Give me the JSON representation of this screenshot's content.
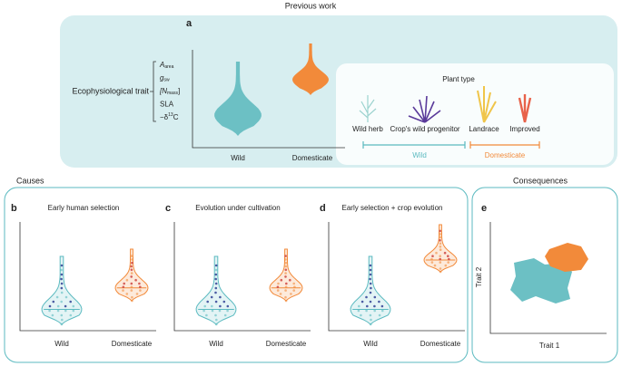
{
  "top": {
    "heading": "Previous work",
    "letter": "a",
    "axis_label": "Ecophysiological trait",
    "traits": [
      {
        "main": "A",
        "sub": "area"
      },
      {
        "main": "g",
        "sub": "sw"
      },
      {
        "main": "[N",
        "sub": "mass",
        "tail": "]"
      },
      {
        "main": "SLA"
      },
      {
        "main": "−δ",
        "sup": "13",
        "tail": "C"
      }
    ],
    "categories": [
      "Wild",
      "Domesticate"
    ],
    "plant_type": {
      "title": "Plant type",
      "plants": [
        "Wild herb",
        "Crop's wild progenitor",
        "Landrace",
        "Improved"
      ],
      "groups": [
        "Wild",
        "Domesticate"
      ]
    }
  },
  "causes": {
    "heading": "Causes",
    "panels": [
      {
        "letter": "b",
        "title": "Early human selection",
        "categories": [
          "Wild",
          "Domesticate"
        ]
      },
      {
        "letter": "c",
        "title": "Evolution under cultivation",
        "categories": [
          "Wild",
          "Domesticate"
        ]
      },
      {
        "letter": "d",
        "title": "Early selection + crop evolution",
        "categories": [
          "Wild",
          "Domesticate"
        ]
      }
    ]
  },
  "consequences": {
    "heading": "Consequences",
    "letter": "e",
    "y_label": "Trait 2",
    "x_label": "Trait 1"
  }
}
